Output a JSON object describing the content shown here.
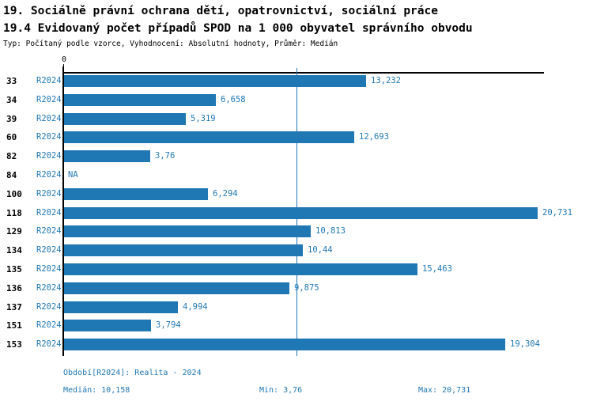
{
  "title": "19. Sociálně právní ochrana dětí, opatrovnictví, sociální práce",
  "subtitle": "19.4 Evidovaný počet případů SPOD na 1 000 obyvatel správního obvodu",
  "meta_line": "Typ: Počítaný podle vzorce, Vyhodnocení: Absolutní hodnoty, Průměr: Medián",
  "colors": {
    "bar": "#1f77b4",
    "blue_text": "#1f77b4",
    "axis": "#000000"
  },
  "chart_data": {
    "type": "bar",
    "orientation": "horizontal",
    "title": "19.4 Evidovaný počet případů SPOD na 1 000 obyvatel správního obvodu",
    "series_label": "R2024",
    "categories": [
      "33",
      "34",
      "39",
      "60",
      "82",
      "84",
      "100",
      "118",
      "129",
      "134",
      "135",
      "136",
      "137",
      "151",
      "153"
    ],
    "values": [
      13.232,
      6.658,
      5.319,
      12.693,
      3.76,
      null,
      6.294,
      20.731,
      10.813,
      10.44,
      15.463,
      9.875,
      4.994,
      3.794,
      19.304
    ],
    "value_labels": [
      "13,232",
      "6,658",
      "5,319",
      "12,693",
      "3,76",
      "NA",
      "6,294",
      "20,731",
      "10,813",
      "10,44",
      "15,463",
      "9,875",
      "4,994",
      "3,794",
      "19,304"
    ],
    "na_label": "NA",
    "x_tick_labels": [
      "0"
    ],
    "xlim": [
      0,
      21
    ],
    "median_value": 10.158,
    "min_value": 3.76,
    "max_value": 20.731,
    "grid": false,
    "legend_position": "none"
  },
  "footer": {
    "period_label": "Období[R2024]: Realita - 2024",
    "median_label": "Medián: 10,158",
    "min_label": "Min: 3,76",
    "max_label": "Max: 20,731"
  }
}
